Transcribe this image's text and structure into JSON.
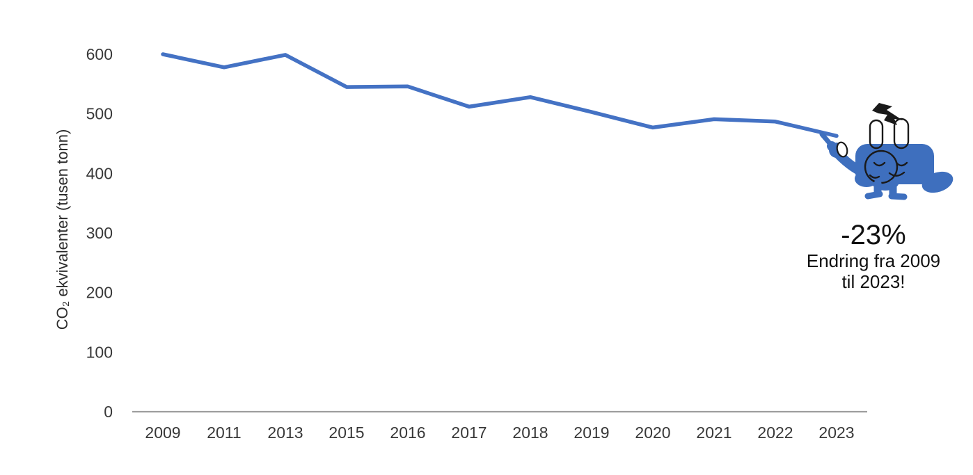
{
  "colors": {
    "line": "#4472C4",
    "axis": "#9E9E9E",
    "mascot_blue": "#3E6FBE",
    "mascot_outline": "#1A1A1A",
    "text": "#383838"
  },
  "chart_data": {
    "type": "line",
    "categories": [
      "2009",
      "2011",
      "2013",
      "2015",
      "2016",
      "2017",
      "2018",
      "2019",
      "2020",
      "2021",
      "2022",
      "2023"
    ],
    "values": [
      600,
      578,
      599,
      545,
      546,
      512,
      528,
      503,
      477,
      491,
      487,
      463
    ],
    "title": "",
    "xlabel": "",
    "ylabel": "CO₂ ekvivalenter (tusen tonn)",
    "ylim": [
      0,
      600
    ],
    "yticks": [
      0,
      100,
      200,
      300,
      400,
      500,
      600
    ],
    "grid": false,
    "legend": false,
    "markers": false
  },
  "annotation": {
    "percentage": "-23%",
    "caption_line1": "Endring fra 2009",
    "caption_line2": "til 2023!"
  },
  "mascot": {
    "name": "sleepy-power-plug-mascot",
    "details": "blue electric plug character with two prongs, black lightning bolt, closed eyes, pointing at end of line"
  }
}
